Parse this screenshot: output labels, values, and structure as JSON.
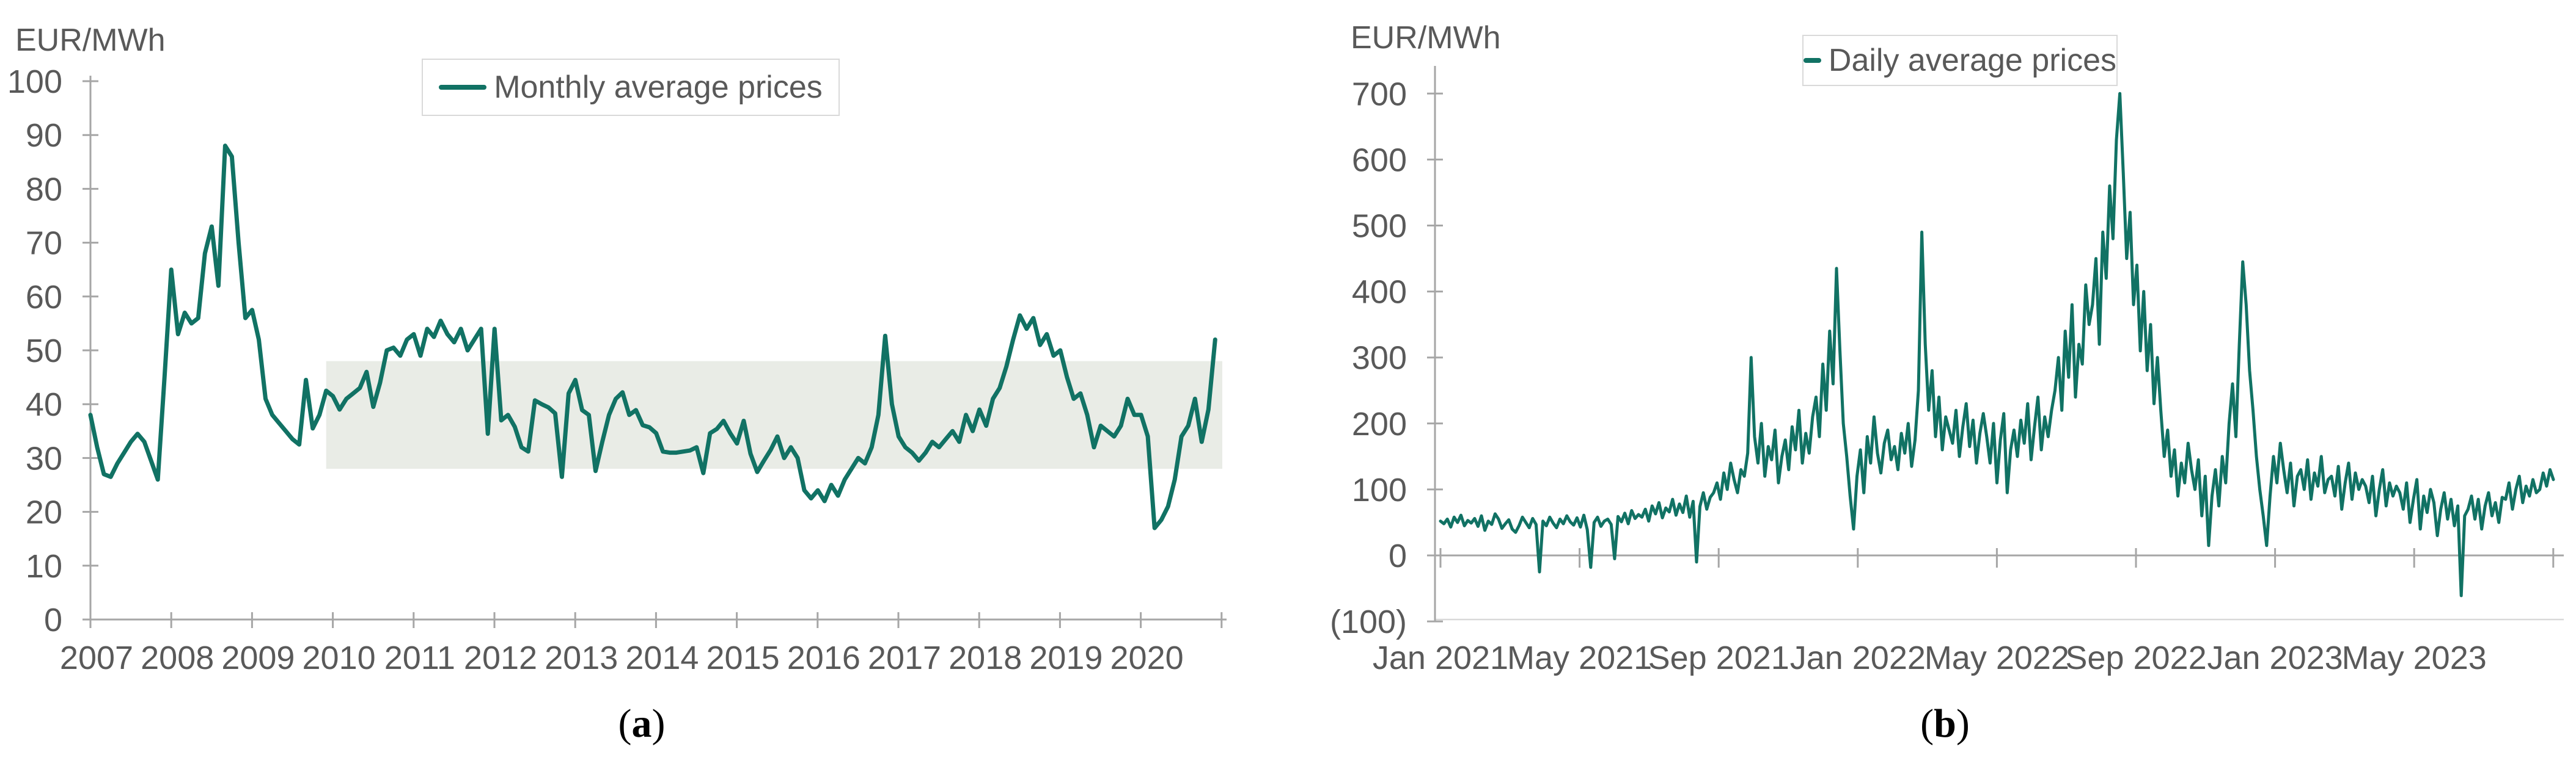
{
  "colors": {
    "line": "#117264",
    "band": "#e9ece6",
    "axis": "#a6a6a6",
    "faint_line": "#d9d9d9",
    "text": "#595959"
  },
  "chart_data": [
    {
      "id": "a",
      "type": "line",
      "unit_label": "EUR/MWh",
      "legend": "Monthly average prices",
      "caption": {
        "open": "(",
        "letter": "a",
        "close": ")"
      },
      "ylim": [
        0,
        100
      ],
      "y_tick_values": [
        0,
        10,
        20,
        30,
        40,
        50,
        60,
        70,
        80,
        90,
        100
      ],
      "x_tick_labels": [
        "2007",
        "2008",
        "2009",
        "2010",
        "2011",
        "2012",
        "2013",
        "2014",
        "2015",
        "2016",
        "2017",
        "2018",
        "2019",
        "2020"
      ],
      "grid": "off",
      "legend_position": "top-center",
      "band": {
        "from": 28,
        "to": 48,
        "start_month_index": 35
      },
      "x_start": "Jan 2007",
      "x_step": "1 month",
      "values": [
        38,
        32,
        27,
        26.5,
        29,
        31,
        33,
        34.5,
        33,
        29.5,
        26,
        45,
        65,
        53,
        57,
        55,
        56,
        68,
        73,
        62,
        88,
        86,
        70,
        56,
        57.5,
        52,
        41,
        38,
        36.5,
        35,
        33.5,
        32.5,
        44.5,
        35.5,
        38,
        42.5,
        41.5,
        39,
        41,
        42,
        43,
        46,
        39.5,
        44,
        50,
        50.5,
        49,
        52,
        53,
        49,
        54,
        52.5,
        55.5,
        53,
        51.5,
        54,
        50,
        52,
        54,
        34.5,
        54,
        37,
        38,
        35.8,
        32,
        31.2,
        40.7,
        40,
        39.4,
        38.3,
        26.5,
        42,
        44.5,
        38.9,
        38,
        27.6,
        33,
        38,
        41,
        42.2,
        38,
        38.9,
        36.1,
        35.7,
        34.6,
        31.2,
        31,
        31,
        31.2,
        31.4,
        32,
        27.2,
        34.6,
        35.4,
        36.9,
        34.6,
        32.7,
        36.9,
        30.8,
        27.4,
        29.5,
        31.5,
        34,
        30,
        32,
        30,
        24,
        22.5,
        24,
        22,
        25,
        23,
        26,
        28,
        30,
        29,
        32,
        38,
        52.7,
        40,
        34,
        32,
        31,
        29.5,
        31,
        33,
        32,
        33.5,
        35,
        33,
        38,
        35,
        39,
        36,
        41,
        43,
        47,
        52,
        56.5,
        54,
        56,
        51,
        53,
        49,
        50,
        45,
        41,
        42,
        38,
        32,
        36,
        35,
        34,
        36,
        41,
        38,
        38,
        34,
        17,
        18.5,
        21,
        26,
        34,
        36,
        41,
        33,
        39,
        52
      ]
    },
    {
      "id": "b",
      "type": "line",
      "unit_label": "EUR/MWh",
      "legend": "Daily average prices",
      "caption": {
        "open": "(",
        "letter": "b",
        "close": ")"
      },
      "ylim": [
        -100,
        700
      ],
      "y_tick_values": [
        700,
        600,
        500,
        400,
        300,
        200,
        100,
        0,
        -100
      ],
      "y_tick_labels": [
        "700",
        "600",
        "500",
        "400",
        "300",
        "200",
        "100",
        "0",
        "(100)"
      ],
      "x_tick_labels": [
        "Jan 2021",
        "May 2021",
        "Sep 2021",
        "Jan 2022",
        "May 2022",
        "Sep 2022",
        "Jan 2023",
        "May 2023"
      ],
      "grid": "off",
      "legend_position": "top-right",
      "x_start": "Jan 2021",
      "x_step": "3 days",
      "values": [
        52,
        48,
        55,
        43,
        58,
        50,
        61,
        45,
        53,
        49,
        56,
        44,
        60,
        38,
        52,
        47,
        63,
        55,
        41,
        48,
        54,
        40,
        35,
        45,
        58,
        50,
        42,
        56,
        47,
        -25,
        52,
        45,
        58,
        49,
        42,
        55,
        48,
        60,
        51,
        46,
        57,
        43,
        61,
        39,
        -18,
        50,
        58,
        44,
        52,
        55,
        47,
        -5,
        59,
        51,
        64,
        48,
        68,
        56,
        62,
        58,
        70,
        52,
        75,
        63,
        80,
        57,
        72,
        66,
        85,
        61,
        78,
        65,
        90,
        58,
        82,
        -10,
        74,
        95,
        70,
        88,
        95,
        110,
        85,
        125,
        100,
        140,
        115,
        95,
        130,
        120,
        155,
        300,
        180,
        140,
        200,
        120,
        165,
        145,
        190,
        110,
        150,
        175,
        130,
        195,
        160,
        220,
        140,
        185,
        155,
        210,
        240,
        180,
        290,
        220,
        340,
        260,
        435,
        310,
        200,
        150,
        90,
        40,
        120,
        160,
        95,
        180,
        140,
        210,
        155,
        125,
        170,
        190,
        145,
        165,
        130,
        185,
        155,
        200,
        135,
        175,
        250,
        490,
        320,
        220,
        280,
        180,
        240,
        160,
        210,
        190,
        170,
        220,
        150,
        195,
        230,
        165,
        205,
        140,
        185,
        215,
        180,
        140,
        200,
        110,
        175,
        215,
        95,
        160,
        190,
        150,
        205,
        170,
        230,
        145,
        195,
        240,
        160,
        210,
        180,
        220,
        250,
        300,
        220,
        340,
        270,
        380,
        240,
        320,
        290,
        410,
        350,
        380,
        450,
        320,
        490,
        420,
        560,
        480,
        630,
        700,
        580,
        450,
        520,
        380,
        440,
        310,
        400,
        280,
        350,
        230,
        300,
        220,
        150,
        190,
        120,
        160,
        90,
        140,
        110,
        170,
        130,
        100,
        145,
        60,
        120,
        15,
        90,
        130,
        75,
        150,
        110,
        200,
        260,
        180,
        320,
        445,
        380,
        280,
        220,
        150,
        100,
        60,
        15,
        90,
        150,
        110,
        170,
        130,
        95,
        140,
        75,
        120,
        130,
        100,
        145,
        85,
        125,
        105,
        150,
        95,
        115,
        120,
        90,
        135,
        70,
        110,
        140,
        85,
        125,
        100,
        115,
        105,
        80,
        120,
        60,
        100,
        130,
        75,
        110,
        90,
        105,
        95,
        70,
        110,
        50,
        85,
        115,
        40,
        90,
        65,
        100,
        80,
        30,
        70,
        95,
        55,
        85,
        45,
        75,
        -61,
        60,
        70,
        90,
        55,
        85,
        40,
        75,
        95,
        60,
        80,
        50,
        88,
        85,
        110,
        70,
        100,
        120,
        80,
        105,
        90,
        115,
        95,
        100,
        125,
        105,
        130,
        115
      ]
    }
  ]
}
